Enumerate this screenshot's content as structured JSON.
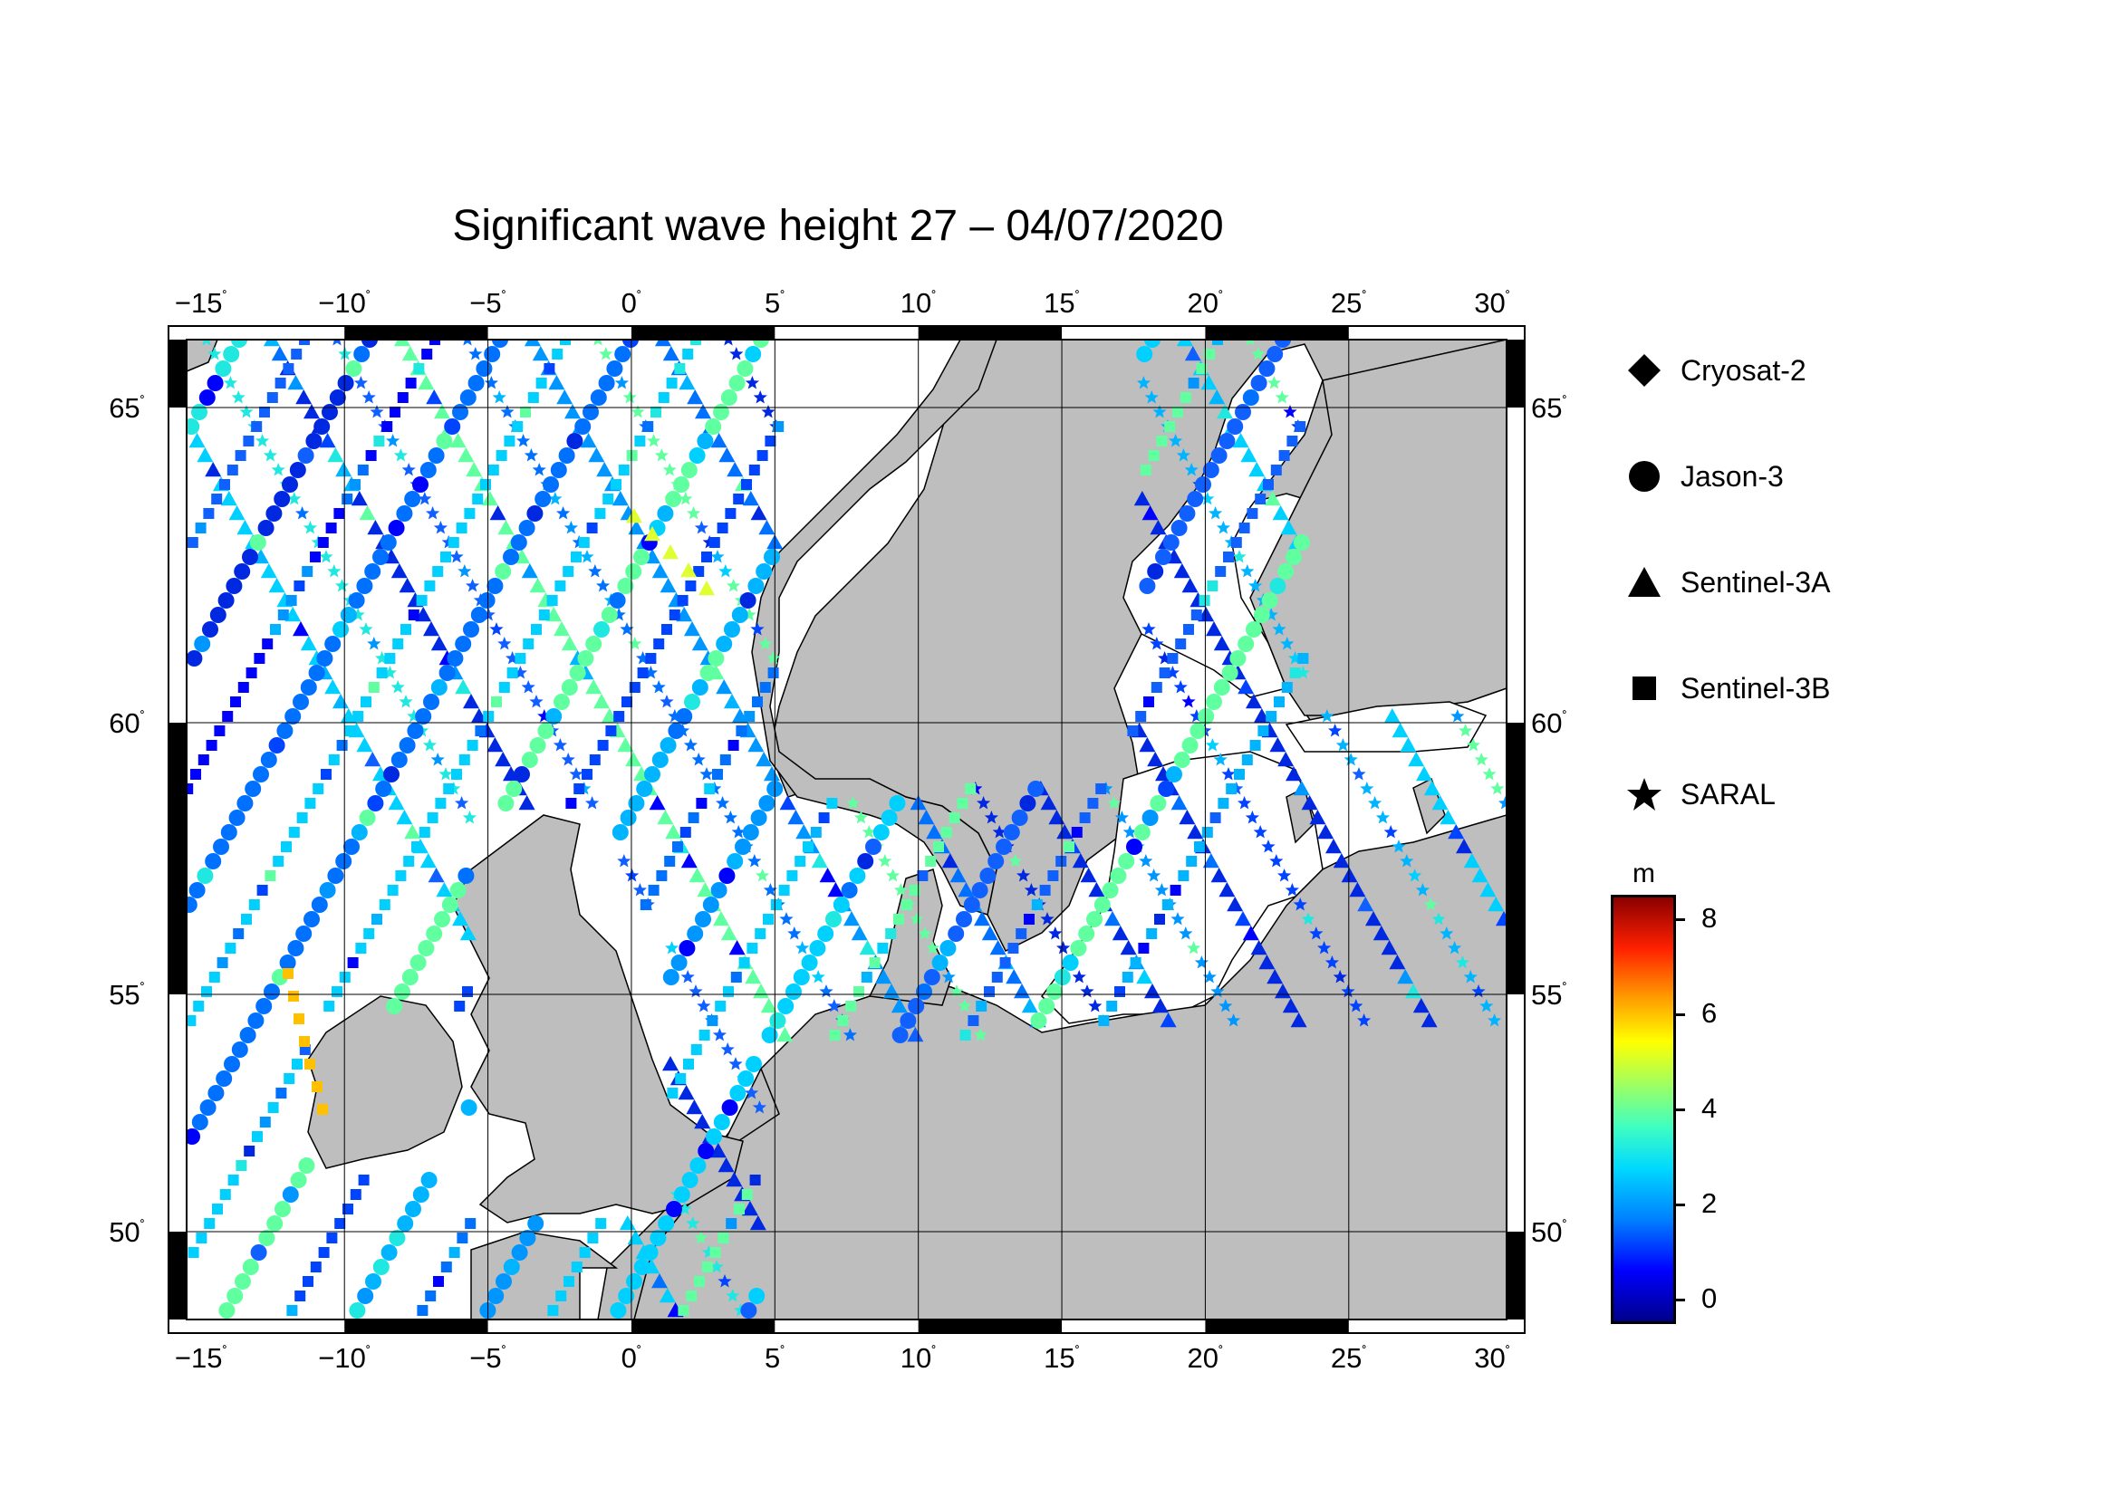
{
  "title": "Significant wave height 27 – 04/07/2020",
  "map": {
    "lon_labels": [
      "−15",
      "−10",
      "−5",
      "0",
      "5",
      "10",
      "15",
      "20",
      "25",
      "30"
    ],
    "lat_labels": [
      "50",
      "55",
      "60",
      "65"
    ],
    "degree_symbol": "˚",
    "land_color": "#bebebe",
    "sea_color": "#ffffff"
  },
  "legend": {
    "items": [
      {
        "label": "Cryosat-2",
        "symbol": "diamond-icon"
      },
      {
        "label": "Jason-3",
        "symbol": "circle-icon"
      },
      {
        "label": "Sentinel-3A",
        "symbol": "triangle-icon"
      },
      {
        "label": "Sentinel-3B",
        "symbol": "square-icon"
      },
      {
        "label": "SARAL",
        "symbol": "star-icon"
      }
    ]
  },
  "colorbar": {
    "unit": "m",
    "ticks": [
      "8",
      "6",
      "4",
      "2",
      "0"
    ],
    "range": [
      -0.5,
      8.6
    ]
  }
}
